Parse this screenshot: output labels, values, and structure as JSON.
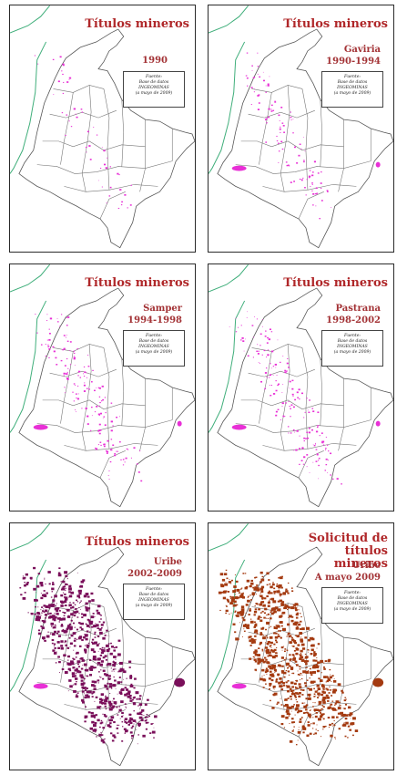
{
  "panels": [
    {
      "title": "Títulos mineros",
      "sub1": "1990",
      "sub2": "",
      "source": [
        "Fuente:",
        "Base de datos",
        "INGEOMINAS",
        "(a mayo de 2009)"
      ]
    },
    {
      "title": "Títulos mineros",
      "sub1": "Gaviria",
      "sub2": "1990-1994",
      "source": [
        "Fuente:",
        "Base de datos",
        "INGEOMINAS",
        "(a mayo de 2009)"
      ]
    },
    {
      "title": "Títulos mineros",
      "sub1": "Samper",
      "sub2": "1994-1998",
      "source": [
        "Fuente:",
        "Base de datos",
        "INGEOMINAS",
        "(a mayo de 2009)"
      ]
    },
    {
      "title": "Títulos mineros",
      "sub1": "Pastrana",
      "sub2": "1998-2002",
      "source": [
        "Fuente:",
        "Base de datos",
        "INGEOMINAS",
        "(a mayo de 2009)"
      ]
    },
    {
      "title": "Títulos mineros",
      "sub1": "Uribe",
      "sub2": "2002-2009",
      "source": [
        "Fuente:",
        "Base de datos",
        "INGEOMINAS",
        "(a mayo de 2009)"
      ]
    },
    {
      "title": "Solicitud de títulos mineros",
      "sub1": "Uribe",
      "sub2": "A mayo 2009",
      "source": [
        "Fuente:",
        "Base de datos",
        "INGEOMINAS",
        "(a mayo de 2009)"
      ]
    }
  ],
  "colors": {
    "border": "#2a2a2a",
    "title": "#b0282a",
    "titles_pink": "#e830d6",
    "titles_purple": "#7a0f5a",
    "requests_brown": "#a43a10",
    "coast": "#3fae7a"
  },
  "density": [
    0.06,
    0.12,
    0.18,
    0.2,
    0.85,
    1.0
  ]
}
